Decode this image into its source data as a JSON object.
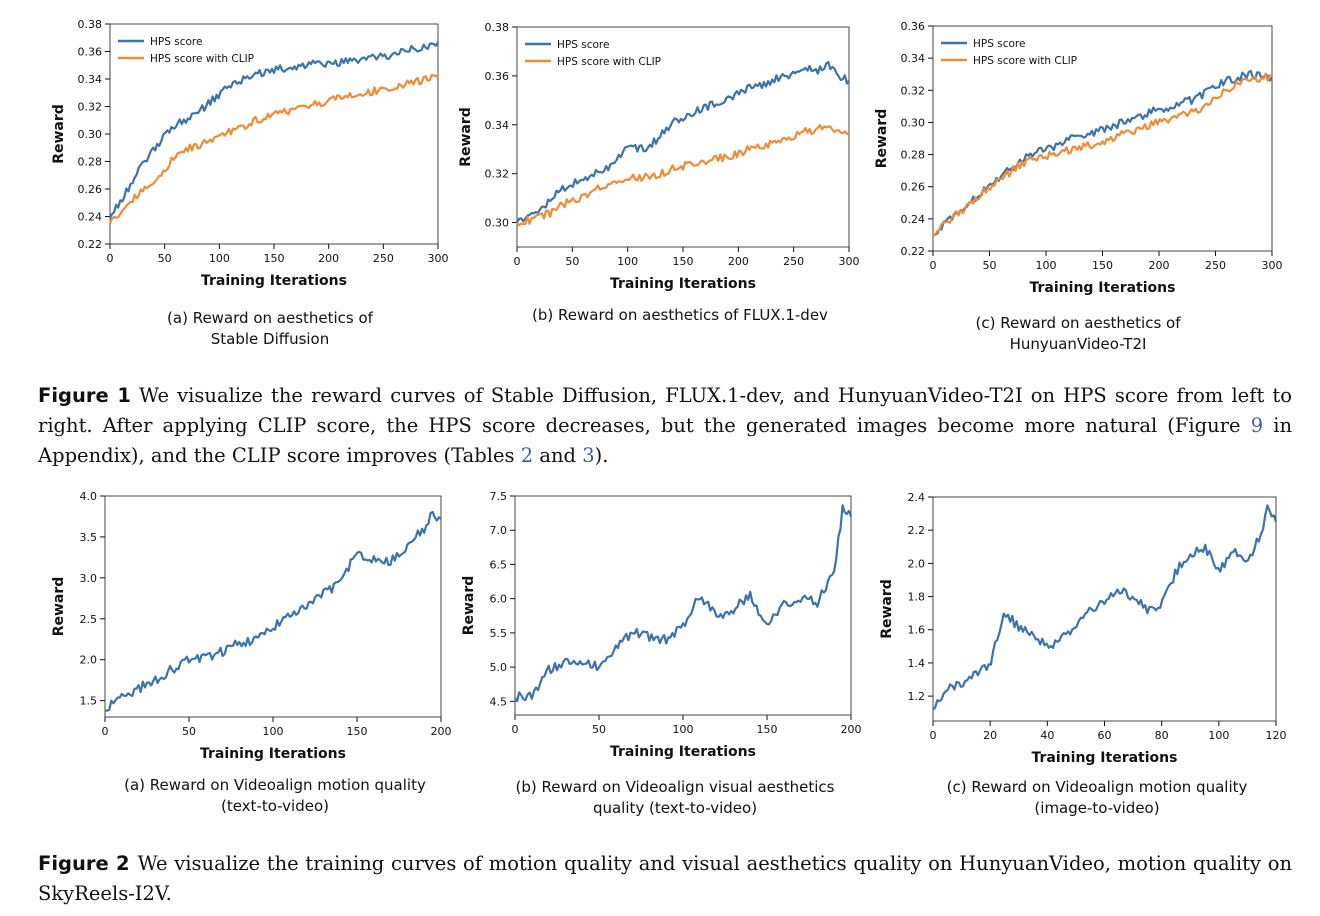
{
  "colors": {
    "hps": "#3b74ad",
    "clip": "#f08c35",
    "axis": "#111111",
    "link": "#3a5fa8"
  },
  "figure1": {
    "label": "Figure 1",
    "caption_parts": [
      "We visualize the reward curves of Stable Diffusion, FLUX.1-dev, and HunyuanVideo-T2I on HPS score from left to right. After applying CLIP score, the HPS score decreases, but the generated images become more natural (Figure ",
      "9",
      " in Appendix), and the CLIP score improves (Tables ",
      "2",
      " and ",
      "3",
      ")."
    ],
    "subcaptions": [
      [
        "(a) Reward on aesthetics of",
        "Stable Diffusion"
      ],
      [
        "(b) Reward on aesthetics of FLUX.1-dev"
      ],
      [
        "(c) Reward on aesthetics of",
        "HunyuanVideo-T2I"
      ]
    ]
  },
  "figure2": {
    "label": "Figure 2",
    "caption": "We visualize the training curves of motion quality and visual aesthetics quality on HunyuanVideo, motion quality on SkyReels-I2V.",
    "subcaptions": [
      [
        "(a) Reward on Videoalign motion quality",
        "(text-to-video)"
      ],
      [
        "(b) Reward on Videoalign visual aesthetics",
        "quality (text-to-video)"
      ],
      [
        "(c) Reward on Videoalign motion quality",
        "(image-to-video)"
      ]
    ]
  },
  "chart_data": [
    {
      "id": "fig1a",
      "type": "line",
      "xlabel": "Training Iterations",
      "ylabel": "Reward",
      "xlim": [
        0,
        300
      ],
      "ylim": [
        0.22,
        0.38
      ],
      "xticks": [
        0,
        50,
        100,
        150,
        200,
        250,
        300
      ],
      "yticks": [
        0.22,
        0.24,
        0.26,
        0.28,
        0.3,
        0.32,
        0.34,
        0.36,
        0.38
      ],
      "ydecimals": 2,
      "legend": "top-left",
      "series": [
        {
          "name": "HPS score",
          "color": "#3b74ad",
          "x": [
            0,
            10,
            20,
            30,
            40,
            50,
            60,
            70,
            80,
            90,
            100,
            110,
            120,
            130,
            140,
            150,
            160,
            170,
            180,
            190,
            200,
            210,
            220,
            230,
            240,
            250,
            260,
            270,
            280,
            290,
            300
          ],
          "y": [
            0.239,
            0.252,
            0.265,
            0.278,
            0.288,
            0.3,
            0.307,
            0.311,
            0.316,
            0.322,
            0.329,
            0.335,
            0.339,
            0.343,
            0.345,
            0.346,
            0.348,
            0.349,
            0.35,
            0.351,
            0.351,
            0.352,
            0.353,
            0.354,
            0.355,
            0.356,
            0.358,
            0.36,
            0.362,
            0.364,
            0.367
          ]
        },
        {
          "name": "HPS score with CLIP",
          "color": "#f08c35",
          "x": [
            0,
            10,
            20,
            30,
            40,
            50,
            60,
            70,
            80,
            90,
            100,
            110,
            120,
            130,
            140,
            150,
            160,
            170,
            180,
            190,
            200,
            210,
            220,
            230,
            240,
            250,
            260,
            270,
            280,
            290,
            300
          ],
          "y": [
            0.235,
            0.244,
            0.252,
            0.259,
            0.266,
            0.274,
            0.284,
            0.289,
            0.292,
            0.295,
            0.298,
            0.302,
            0.305,
            0.309,
            0.312,
            0.314,
            0.316,
            0.318,
            0.32,
            0.322,
            0.324,
            0.326,
            0.327,
            0.329,
            0.331,
            0.333,
            0.334,
            0.336,
            0.338,
            0.34,
            0.341
          ]
        }
      ]
    },
    {
      "id": "fig1b",
      "type": "line",
      "xlabel": "Training Iterations",
      "ylabel": "Reward",
      "xlim": [
        0,
        300
      ],
      "ylim": [
        0.29,
        0.38
      ],
      "xticks": [
        0,
        50,
        100,
        150,
        200,
        250,
        300
      ],
      "yticks": [
        0.3,
        0.32,
        0.34,
        0.36,
        0.38
      ],
      "ydecimals": 2,
      "legend": "top-left",
      "series": [
        {
          "name": "HPS score",
          "color": "#3b74ad",
          "x": [
            0,
            10,
            20,
            30,
            40,
            50,
            60,
            70,
            80,
            90,
            100,
            110,
            120,
            130,
            140,
            150,
            160,
            170,
            180,
            190,
            200,
            210,
            220,
            230,
            240,
            250,
            260,
            270,
            280,
            290,
            300
          ],
          "y": [
            0.3,
            0.303,
            0.305,
            0.309,
            0.314,
            0.316,
            0.317,
            0.32,
            0.322,
            0.326,
            0.331,
            0.33,
            0.331,
            0.336,
            0.341,
            0.342,
            0.345,
            0.347,
            0.349,
            0.35,
            0.353,
            0.355,
            0.356,
            0.358,
            0.36,
            0.361,
            0.364,
            0.362,
            0.365,
            0.36,
            0.358
          ]
        },
        {
          "name": "HPS score with CLIP",
          "color": "#f08c35",
          "x": [
            0,
            10,
            20,
            30,
            40,
            50,
            60,
            70,
            80,
            90,
            100,
            110,
            120,
            130,
            140,
            150,
            160,
            170,
            180,
            190,
            200,
            210,
            220,
            230,
            240,
            250,
            260,
            270,
            280,
            290,
            300
          ],
          "y": [
            0.3,
            0.301,
            0.302,
            0.304,
            0.307,
            0.309,
            0.311,
            0.313,
            0.315,
            0.316,
            0.318,
            0.318,
            0.319,
            0.32,
            0.322,
            0.323,
            0.324,
            0.325,
            0.326,
            0.327,
            0.328,
            0.33,
            0.331,
            0.332,
            0.334,
            0.335,
            0.337,
            0.338,
            0.339,
            0.337,
            0.336
          ]
        }
      ]
    },
    {
      "id": "fig1c",
      "type": "line",
      "xlabel": "Training Iterations",
      "ylabel": "Reward",
      "xlim": [
        0,
        300
      ],
      "ylim": [
        0.22,
        0.36
      ],
      "xticks": [
        0,
        50,
        100,
        150,
        200,
        250,
        300
      ],
      "yticks": [
        0.22,
        0.24,
        0.26,
        0.28,
        0.3,
        0.32,
        0.34,
        0.36
      ],
      "ydecimals": 2,
      "legend": "top-left",
      "series": [
        {
          "name": "HPS score",
          "color": "#3b74ad",
          "x": [
            0,
            10,
            20,
            30,
            40,
            50,
            60,
            70,
            80,
            90,
            100,
            110,
            120,
            130,
            140,
            150,
            160,
            170,
            180,
            190,
            200,
            210,
            220,
            230,
            240,
            250,
            260,
            270,
            280,
            290,
            300
          ],
          "y": [
            0.23,
            0.236,
            0.242,
            0.248,
            0.254,
            0.261,
            0.266,
            0.272,
            0.277,
            0.281,
            0.283,
            0.286,
            0.289,
            0.291,
            0.293,
            0.296,
            0.298,
            0.301,
            0.303,
            0.306,
            0.308,
            0.31,
            0.312,
            0.314,
            0.318,
            0.322,
            0.326,
            0.328,
            0.33,
            0.329,
            0.328
          ]
        },
        {
          "name": "HPS score with CLIP",
          "color": "#f08c35",
          "x": [
            0,
            10,
            20,
            30,
            40,
            50,
            60,
            70,
            80,
            90,
            100,
            110,
            120,
            130,
            140,
            150,
            160,
            170,
            180,
            190,
            200,
            210,
            220,
            230,
            240,
            250,
            260,
            270,
            280,
            290,
            300
          ],
          "y": [
            0.23,
            0.236,
            0.242,
            0.248,
            0.254,
            0.26,
            0.265,
            0.27,
            0.275,
            0.277,
            0.279,
            0.281,
            0.283,
            0.284,
            0.286,
            0.288,
            0.29,
            0.293,
            0.295,
            0.298,
            0.3,
            0.302,
            0.304,
            0.306,
            0.31,
            0.314,
            0.32,
            0.325,
            0.328,
            0.327,
            0.329
          ]
        }
      ]
    },
    {
      "id": "fig2a",
      "type": "line",
      "xlabel": "Training Iterations",
      "ylabel": "Reward",
      "xlim": [
        0,
        200
      ],
      "ylim": [
        1.3,
        4.0
      ],
      "xticks": [
        0,
        50,
        100,
        150,
        200
      ],
      "yticks": [
        1.5,
        2.0,
        2.5,
        3.0,
        3.5,
        4.0
      ],
      "ydecimals": 1,
      "series": [
        {
          "name": "",
          "color": "#3b74ad",
          "x": [
            0,
            10,
            20,
            30,
            40,
            50,
            60,
            70,
            80,
            90,
            100,
            110,
            120,
            130,
            140,
            150,
            160,
            170,
            180,
            190,
            195,
            200
          ],
          "y": [
            1.38,
            1.55,
            1.65,
            1.75,
            1.88,
            2.0,
            2.02,
            2.1,
            2.2,
            2.25,
            2.4,
            2.55,
            2.68,
            2.8,
            2.95,
            3.3,
            3.22,
            3.2,
            3.4,
            3.6,
            3.78,
            3.72
          ]
        }
      ]
    },
    {
      "id": "fig2b",
      "type": "line",
      "xlabel": "Training Iterations",
      "ylabel": "Reward",
      "xlim": [
        0,
        200
      ],
      "ylim": [
        4.3,
        7.5
      ],
      "xticks": [
        0,
        50,
        100,
        150,
        200
      ],
      "yticks": [
        4.5,
        5.0,
        5.5,
        6.0,
        6.5,
        7.0,
        7.5
      ],
      "ydecimals": 1,
      "series": [
        {
          "name": "",
          "color": "#3b74ad",
          "x": [
            0,
            10,
            20,
            30,
            40,
            50,
            60,
            70,
            80,
            90,
            100,
            110,
            120,
            130,
            140,
            150,
            160,
            170,
            180,
            190,
            195,
            200
          ],
          "y": [
            4.55,
            4.6,
            4.95,
            5.05,
            5.1,
            5.0,
            5.3,
            5.5,
            5.45,
            5.4,
            5.6,
            6.05,
            5.75,
            5.85,
            6.05,
            5.6,
            5.9,
            6.0,
            5.95,
            6.4,
            7.3,
            7.2
          ]
        }
      ]
    },
    {
      "id": "fig2c",
      "type": "line",
      "xlabel": "Training Iterations",
      "ylabel": "Reward",
      "xlim": [
        0,
        120
      ],
      "ylim": [
        1.05,
        2.4
      ],
      "xticks": [
        0,
        20,
        40,
        60,
        80,
        100,
        120
      ],
      "yticks": [
        1.2,
        1.4,
        1.6,
        1.8,
        2.0,
        2.2,
        2.4
      ],
      "ydecimals": 1,
      "series": [
        {
          "name": "",
          "color": "#3b74ad",
          "x": [
            0,
            5,
            10,
            15,
            20,
            25,
            30,
            35,
            40,
            45,
            50,
            55,
            60,
            65,
            70,
            75,
            80,
            85,
            90,
            95,
            100,
            105,
            110,
            115,
            117,
            120
          ],
          "y": [
            1.12,
            1.25,
            1.28,
            1.33,
            1.4,
            1.7,
            1.62,
            1.58,
            1.5,
            1.55,
            1.62,
            1.72,
            1.78,
            1.85,
            1.8,
            1.72,
            1.75,
            1.95,
            2.05,
            2.1,
            1.95,
            2.08,
            2.0,
            2.2,
            2.33,
            2.25
          ]
        }
      ]
    }
  ]
}
